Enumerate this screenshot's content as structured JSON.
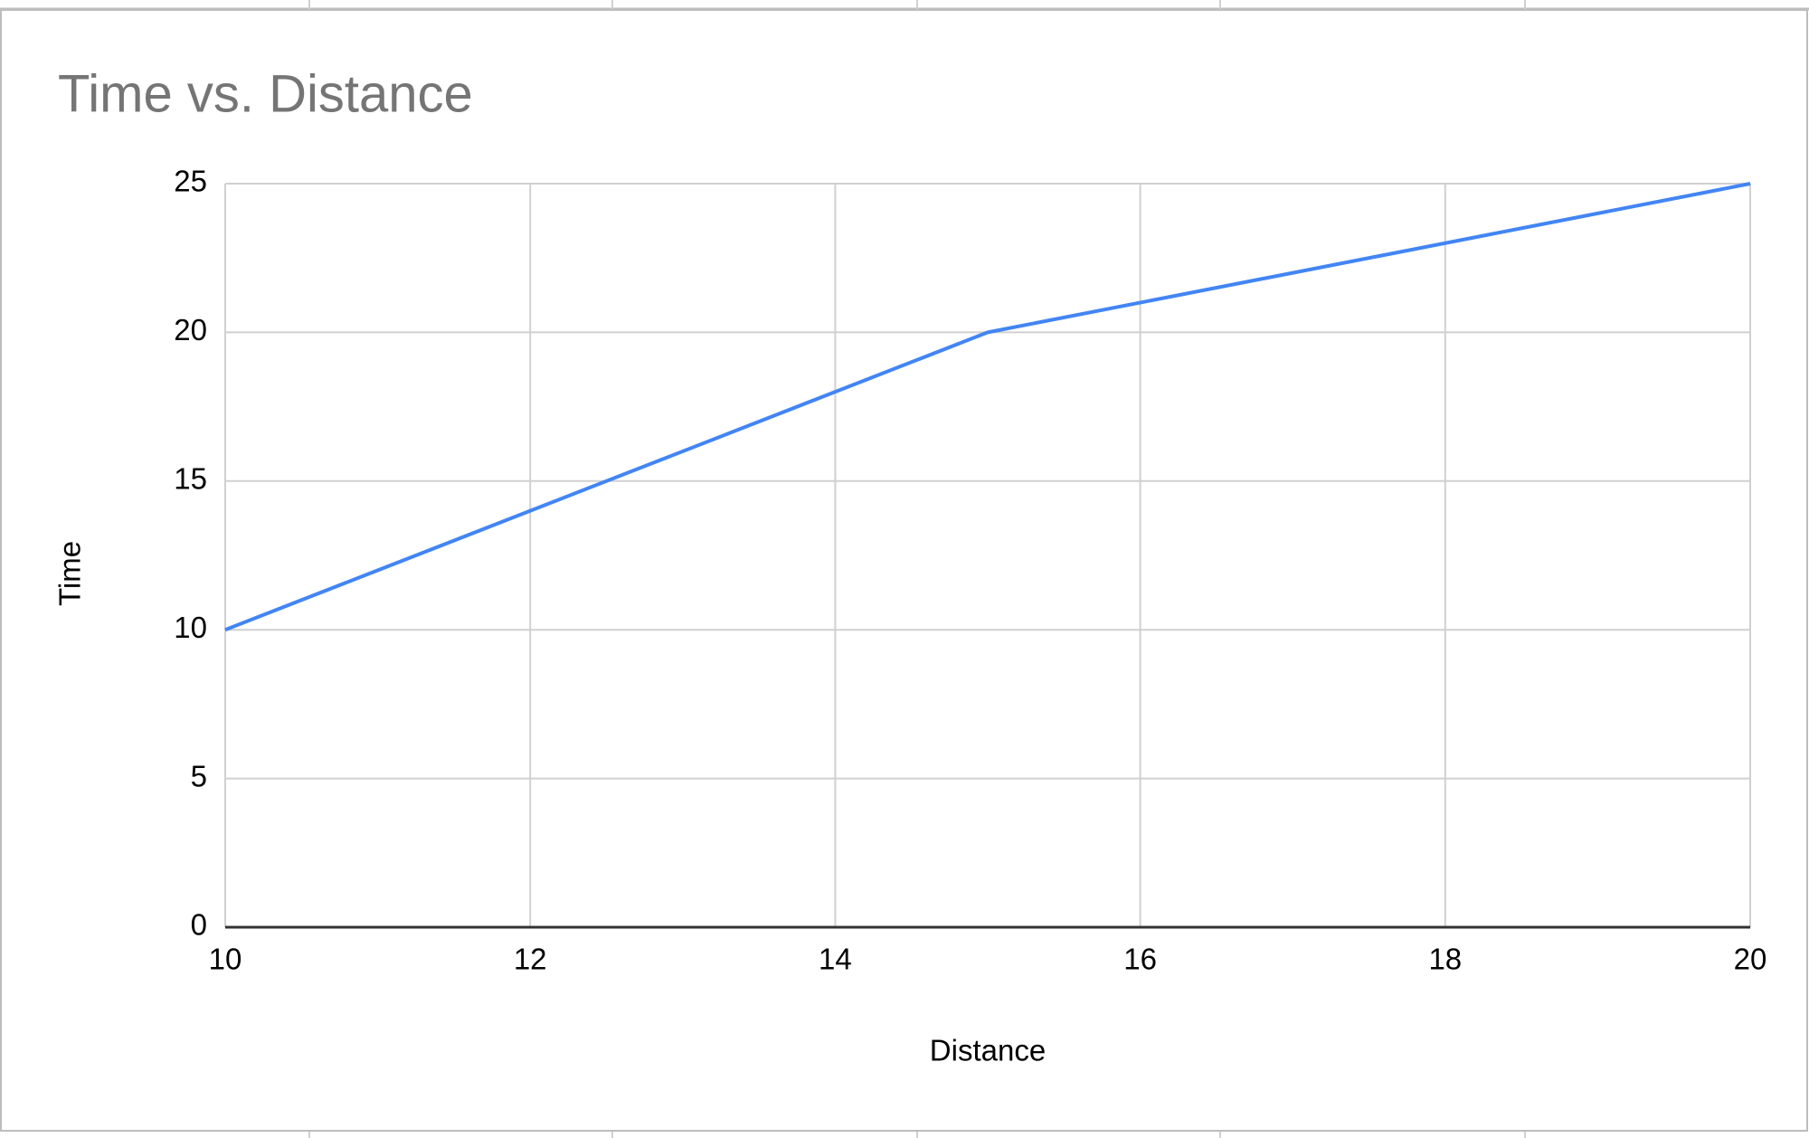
{
  "chart_data": {
    "type": "line",
    "title": "Time vs. Distance",
    "x_label": "Distance",
    "y_label": "Time",
    "x": [
      10,
      15,
      20
    ],
    "series": [
      {
        "name": "Time",
        "color": "#4285f4",
        "values": [
          10,
          20,
          25
        ]
      }
    ],
    "xlim": [
      10,
      20
    ],
    "xticks": [
      10,
      12,
      14,
      16,
      18,
      20
    ],
    "ylim": [
      0,
      25
    ],
    "yticks": [
      0,
      5,
      10,
      15,
      20,
      25
    ],
    "grid": true
  }
}
